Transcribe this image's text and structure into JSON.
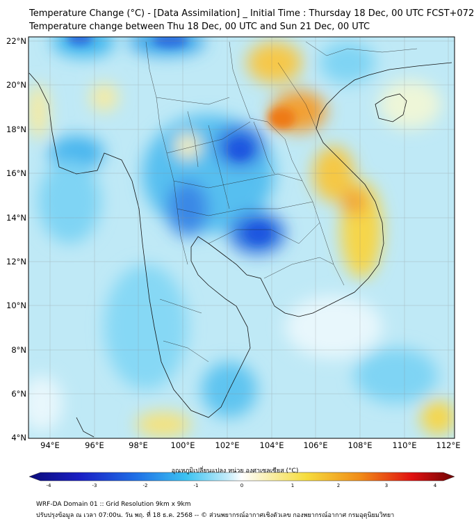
{
  "title": {
    "line1": "Temperature Change (°C) - [Data Assimilation] _ Initial Time : Thursday 18 Dec, 00 UTC FCST+072",
    "line2": "Temperature change between Thu 18 Dec, 00 UTC and Sun 21 Dec, 00 UTC"
  },
  "axes": {
    "lat_labels": [
      "22°N",
      "20°N",
      "18°N",
      "16°N",
      "14°N",
      "12°N",
      "10°N",
      "8°N",
      "6°N",
      "4°N"
    ],
    "lon_labels": [
      "94°E",
      "96°E",
      "98°E",
      "100°E",
      "102°E",
      "104°E",
      "106°E",
      "108°E",
      "110°E",
      "112°E"
    ],
    "lat_range": [
      4,
      22.2
    ],
    "lon_range": [
      93.0,
      112.6
    ]
  },
  "colorbar": {
    "title": "อุณหภูมิเปลี่ยนแปลง หน่วย องศาเซลเซียส (°C)",
    "ticks": [
      "-4",
      "-3",
      "-2",
      "-1",
      "0",
      "1",
      "2",
      "3",
      "4"
    ],
    "range": [
      -4,
      4
    ],
    "colors": {
      "cold_extreme": "#0b0b7a",
      "cold": "#1f57e0",
      "cool": "#3cc3f2",
      "neutral": "#ffffff",
      "warm": "#f6dd3e",
      "hot": "#f08a17",
      "hot_extreme": "#6e0404"
    }
  },
  "footer": {
    "line1": "WRF-DA Domain 01 :: Grid Resolution 9km x 9km",
    "line2": "ปรับปรุงข้อมูล ณ เวลา 07:00น. วัน พฤ. ที่ 18 ธ.ค. 2568 -- © ส่วนพยากรณ์อากาศเชิงตัวเลข กองพยากรณ์อากาศ กรมอุตุนิยมวิทยา"
  }
}
